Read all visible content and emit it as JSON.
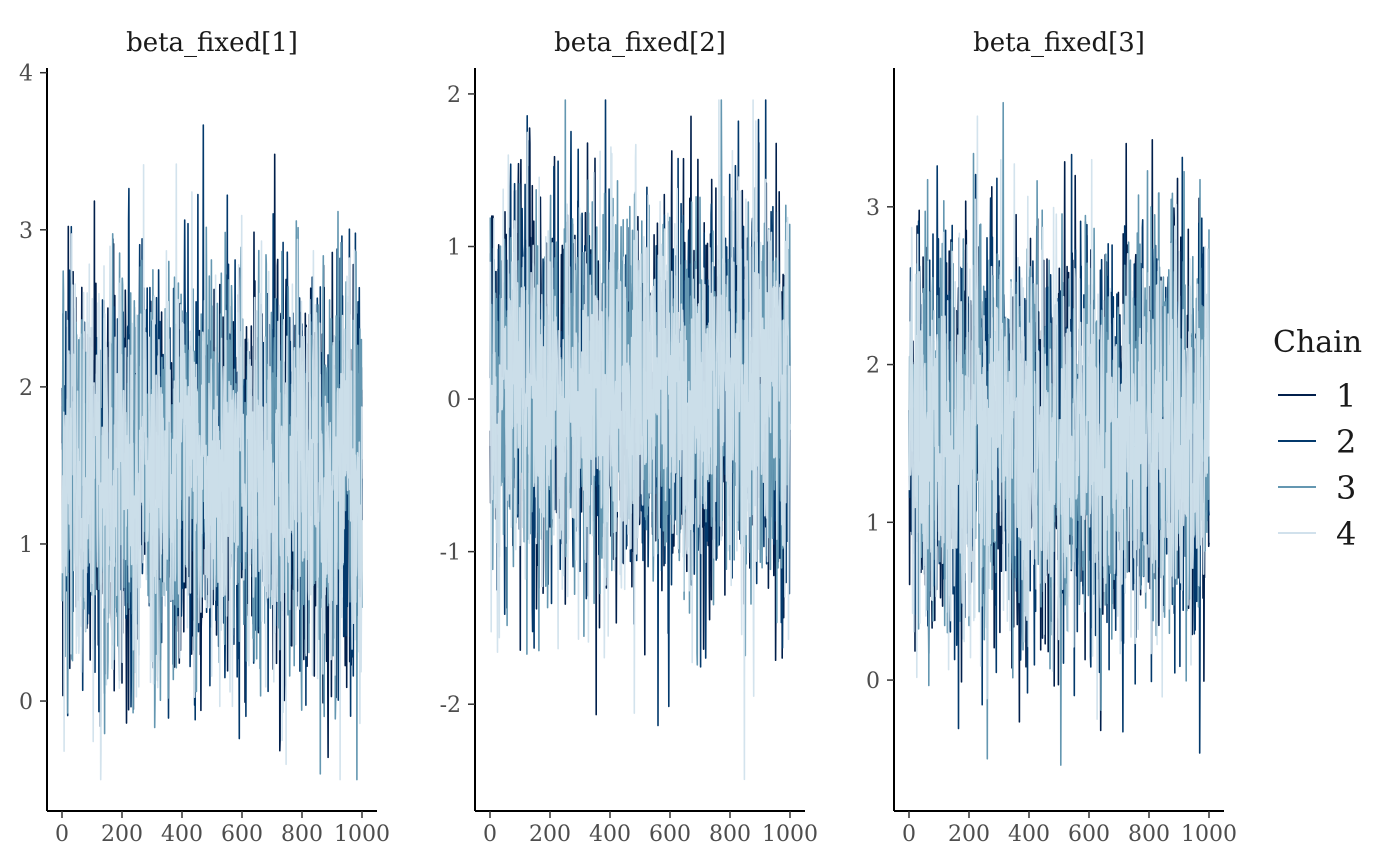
{
  "chart_data": {
    "type": "line",
    "colors": {
      "chain_1": "#011f4b",
      "chain_2": "#03396c",
      "chain_3": "#6497b1",
      "chain_4": "#d1e1ec"
    },
    "legend": {
      "title": "Chain",
      "placement": "right",
      "entries": [
        "1",
        "2",
        "3",
        "4"
      ]
    },
    "grid": false,
    "panels": [
      {
        "title": "beta_fixed[1]",
        "xlim": [
          -50,
          1050
        ],
        "ylim": [
          -0.7,
          4.03
        ],
        "x_ticks": [
          0,
          200,
          400,
          600,
          800,
          1000
        ],
        "x_tick_labels": [
          "0",
          "200",
          "400",
          "600",
          "800",
          "1000"
        ],
        "y_ticks": [
          0,
          1,
          2,
          3,
          4
        ],
        "y_tick_labels": [
          "0",
          "1",
          "2",
          "3",
          "4"
        ],
        "trace": {
          "iterations": 1000,
          "center": 1.45,
          "spread": 0.62,
          "min": -0.5,
          "max": 3.82
        }
      },
      {
        "title": "beta_fixed[2]",
        "xlim": [
          -50,
          1050
        ],
        "ylim": [
          -2.7,
          2.17
        ],
        "x_ticks": [
          0,
          200,
          400,
          600,
          800,
          1000
        ],
        "x_tick_labels": [
          "0",
          "200",
          "400",
          "600",
          "800",
          "1000"
        ],
        "y_ticks": [
          -2,
          -1,
          0,
          1,
          2
        ],
        "y_tick_labels": [
          "-2",
          "-1",
          "0",
          "1",
          "2"
        ],
        "trace": {
          "iterations": 1000,
          "center": 0.05,
          "spread": 0.62,
          "min": -2.5,
          "max": 1.96
        }
      },
      {
        "title": "beta_fixed[3]",
        "xlim": [
          -50,
          1050
        ],
        "ylim": [
          -0.83,
          3.88
        ],
        "x_ticks": [
          0,
          200,
          400,
          600,
          800,
          1000
        ],
        "x_tick_labels": [
          "0",
          "200",
          "400",
          "600",
          "800",
          "1000"
        ],
        "y_ticks": [
          0,
          1,
          2,
          3
        ],
        "y_tick_labels": [
          "0",
          "1",
          "2",
          "3"
        ],
        "trace": {
          "iterations": 1000,
          "center": 1.55,
          "spread": 0.62,
          "min": -0.63,
          "max": 3.66
        }
      }
    ]
  }
}
